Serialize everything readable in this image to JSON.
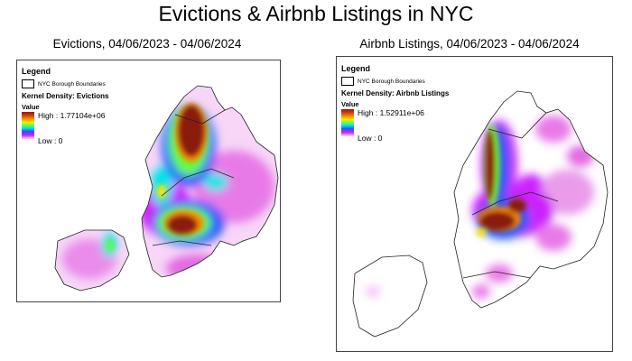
{
  "title": "Evictions & Airbnb Listings in NYC",
  "panels": {
    "left": {
      "title": "Evictions, 04/06/2023 - 04/06/2024",
      "legend": {
        "heading": "Legend",
        "boundary_label": "NYC Borough Boundaries",
        "layer_label": "Kernel Density: Evictions",
        "value_label": "Value",
        "high_label": "High : 1.77104e+06",
        "low_label": "Low : 0"
      }
    },
    "right": {
      "title": "Airbnb Listings, 04/06/2023 - 04/06/2024",
      "legend": {
        "heading": "Legend",
        "boundary_label": "NYC Borough Boundaries",
        "layer_label": "Kernel Density: Airbnb Listings",
        "value_label": "Value",
        "high_label": "High : 1.52911e+06",
        "low_label": "Low : 0"
      }
    }
  },
  "colors": {
    "high": "#8b1a0f",
    "mid_high": "#ff8a00",
    "mid": "#66ff33",
    "mid_low": "#2255ff",
    "low": "#cc22ff",
    "background": "#ffffff"
  }
}
